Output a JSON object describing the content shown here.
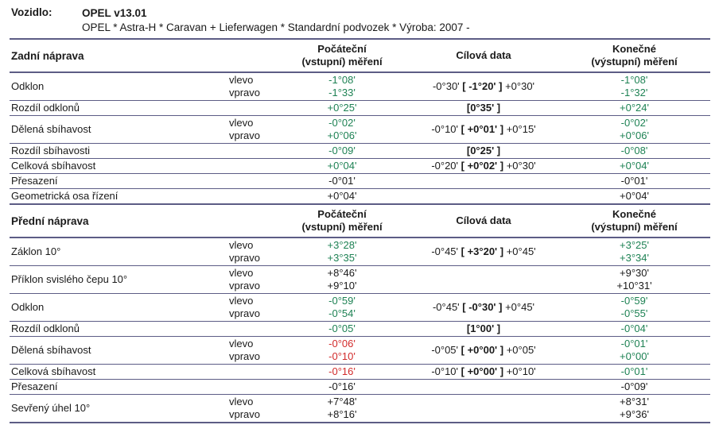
{
  "header": {
    "label": "Vozidlo:",
    "program": "OPEL v13.01",
    "spec": "OPEL * Astra-H * Caravan + Lieferwagen * Standardní podvozek * Výroba: 2007 -"
  },
  "columns": {
    "initial": [
      "Počáteční",
      "(vstupní) měření"
    ],
    "target": "Cílová data",
    "final": [
      "Konečné",
      "(výstupní) měření"
    ]
  },
  "colors": {
    "ok": "#1e8254",
    "fault": "#d22b2b",
    "line": "#5c5c85",
    "text": "#1a1a1a"
  },
  "sections": [
    {
      "title": "Zadní náprava",
      "rows": [
        {
          "label": "Odklon",
          "sides": [
            "vlevo",
            "vpravo"
          ],
          "initial": [
            {
              "value": "-1°08'",
              "status": "ok"
            },
            {
              "value": "-1°33'",
              "status": "ok"
            }
          ],
          "target": {
            "low": "-0°30'",
            "mid": "[ -1°20' ]",
            "high": "+0°30'"
          },
          "final": [
            {
              "value": "-1°08'",
              "status": "ok"
            },
            {
              "value": "-1°32'",
              "status": "ok"
            }
          ]
        },
        {
          "label": "Rozdíl odklonů",
          "sides": null,
          "initial": [
            {
              "value": "+0°25'",
              "status": "ok"
            }
          ],
          "target": {
            "low": "",
            "mid": "[0°35' ]",
            "high": ""
          },
          "final": [
            {
              "value": "+0°24'",
              "status": "ok"
            }
          ]
        },
        {
          "label": "Dělená sbíhavost",
          "sides": [
            "vlevo",
            "vpravo"
          ],
          "initial": [
            {
              "value": "-0°02'",
              "status": "ok"
            },
            {
              "value": "+0°06'",
              "status": "ok"
            }
          ],
          "target": {
            "low": "-0°10'",
            "mid": "[ +0°01' ]",
            "high": "+0°15'"
          },
          "final": [
            {
              "value": "-0°02'",
              "status": "ok"
            },
            {
              "value": "+0°06'",
              "status": "ok"
            }
          ]
        },
        {
          "label": "Rozdíl sbíhavosti",
          "sides": null,
          "initial": [
            {
              "value": "-0°09'",
              "status": "ok"
            }
          ],
          "target": {
            "low": "",
            "mid": "[0°25' ]",
            "high": ""
          },
          "final": [
            {
              "value": "-0°08'",
              "status": "ok"
            }
          ]
        },
        {
          "label": "Celková sbíhavost",
          "sides": null,
          "initial": [
            {
              "value": "+0°04'",
              "status": "ok"
            }
          ],
          "target": {
            "low": "-0°20'",
            "mid": "[ +0°02' ]",
            "high": "+0°30'"
          },
          "final": [
            {
              "value": "+0°04'",
              "status": "ok"
            }
          ]
        },
        {
          "label": "Přesazení",
          "sides": null,
          "initial": [
            {
              "value": "-0°01'",
              "status": "neutral"
            }
          ],
          "target": null,
          "final": [
            {
              "value": "-0°01'",
              "status": "neutral"
            }
          ]
        },
        {
          "label": "Geometrická osa řízení",
          "sides": null,
          "initial": [
            {
              "value": "+0°04'",
              "status": "neutral"
            }
          ],
          "target": null,
          "final": [
            {
              "value": "+0°04'",
              "status": "neutral"
            }
          ]
        }
      ]
    },
    {
      "title": "Přední náprava",
      "rows": [
        {
          "label": "Záklon 10°",
          "sides": [
            "vlevo",
            "vpravo"
          ],
          "initial": [
            {
              "value": "+3°28'",
              "status": "ok"
            },
            {
              "value": "+3°35'",
              "status": "ok"
            }
          ],
          "target": {
            "low": "-0°45'",
            "mid": "[ +3°20' ]",
            "high": "+0°45'"
          },
          "final": [
            {
              "value": "+3°25'",
              "status": "ok"
            },
            {
              "value": "+3°34'",
              "status": "ok"
            }
          ]
        },
        {
          "label": "Příklon svislého čepu 10°",
          "sides": [
            "vlevo",
            "vpravo"
          ],
          "initial": [
            {
              "value": "+8°46'",
              "status": "neutral"
            },
            {
              "value": "+9°10'",
              "status": "neutral"
            }
          ],
          "target": null,
          "final": [
            {
              "value": "+9°30'",
              "status": "neutral"
            },
            {
              "value": "+10°31'",
              "status": "neutral"
            }
          ]
        },
        {
          "label": "Odklon",
          "sides": [
            "vlevo",
            "vpravo"
          ],
          "initial": [
            {
              "value": "-0°59'",
              "status": "ok"
            },
            {
              "value": "-0°54'",
              "status": "ok"
            }
          ],
          "target": {
            "low": "-0°45'",
            "mid": "[ -0°30' ]",
            "high": "+0°45'"
          },
          "final": [
            {
              "value": "-0°59'",
              "status": "ok"
            },
            {
              "value": "-0°55'",
              "status": "ok"
            }
          ]
        },
        {
          "label": "Rozdíl odklonů",
          "sides": null,
          "initial": [
            {
              "value": "-0°05'",
              "status": "ok"
            }
          ],
          "target": {
            "low": "",
            "mid": "[1°00' ]",
            "high": ""
          },
          "final": [
            {
              "value": "-0°04'",
              "status": "ok"
            }
          ]
        },
        {
          "label": "Dělená sbíhavost",
          "sides": [
            "vlevo",
            "vpravo"
          ],
          "initial": [
            {
              "value": "-0°06'",
              "status": "fault"
            },
            {
              "value": "-0°10'",
              "status": "fault"
            }
          ],
          "target": {
            "low": "-0°05'",
            "mid": "[ +0°00' ]",
            "high": "+0°05'"
          },
          "final": [
            {
              "value": "-0°01'",
              "status": "ok"
            },
            {
              "value": "+0°00'",
              "status": "ok"
            }
          ]
        },
        {
          "label": "Celková sbíhavost",
          "sides": null,
          "initial": [
            {
              "value": "-0°16'",
              "status": "fault"
            }
          ],
          "target": {
            "low": "-0°10'",
            "mid": "[ +0°00' ]",
            "high": "+0°10'"
          },
          "final": [
            {
              "value": "-0°01'",
              "status": "ok"
            }
          ]
        },
        {
          "label": "Přesazení",
          "sides": null,
          "initial": [
            {
              "value": "-0°16'",
              "status": "neutral"
            }
          ],
          "target": null,
          "final": [
            {
              "value": "-0°09'",
              "status": "neutral"
            }
          ]
        },
        {
          "label": "Sevřený úhel 10°",
          "sides": [
            "vlevo",
            "vpravo"
          ],
          "initial": [
            {
              "value": "+7°48'",
              "status": "neutral"
            },
            {
              "value": "+8°16'",
              "status": "neutral"
            }
          ],
          "target": null,
          "final": [
            {
              "value": "+8°31'",
              "status": "neutral"
            },
            {
              "value": "+9°36'",
              "status": "neutral"
            }
          ]
        }
      ]
    }
  ]
}
